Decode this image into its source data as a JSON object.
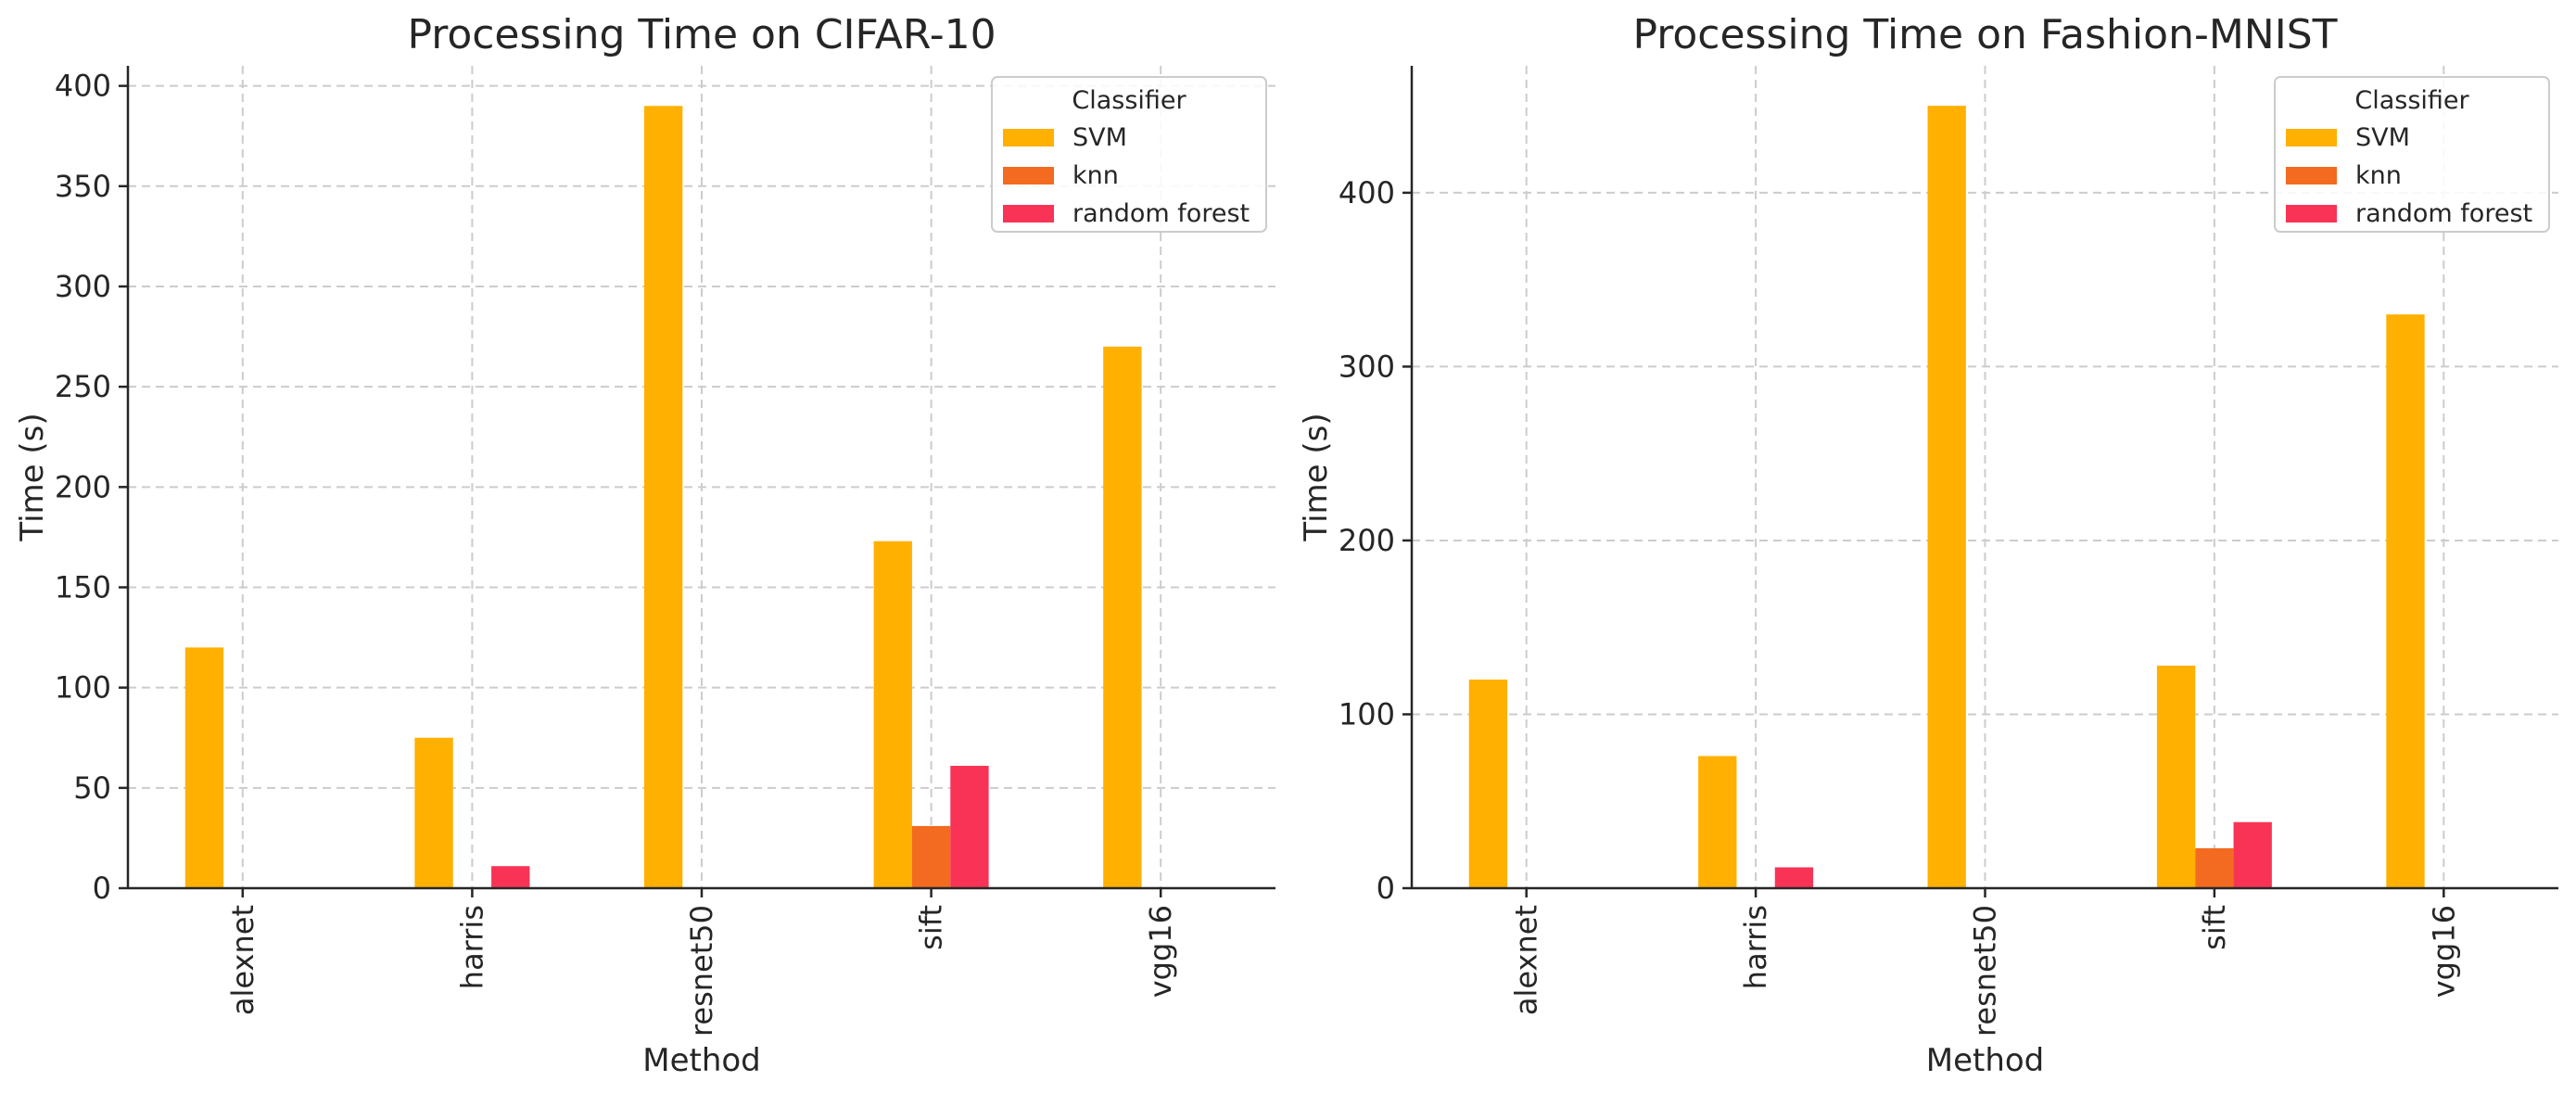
{
  "chart_data": [
    {
      "type": "bar",
      "title": "Processing Time on CIFAR-10",
      "xlabel": "Method",
      "ylabel": "Time (s)",
      "categories": [
        "alexnet",
        "harris",
        "resnet50",
        "sift",
        "vgg16"
      ],
      "ylim": [
        0,
        410
      ],
      "yticks": [
        0,
        50,
        100,
        150,
        200,
        250,
        300,
        350,
        400
      ],
      "grid": true,
      "legend": {
        "title": "Classifier",
        "placement": "top-right"
      },
      "series": [
        {
          "name": "SVM",
          "color": "#FFB000",
          "values": [
            120,
            75,
            390,
            173,
            270
          ]
        },
        {
          "name": "knn",
          "color": "#F26B21",
          "values": [
            0,
            0,
            0,
            31,
            0
          ]
        },
        {
          "name": "random forest",
          "color": "#F83356",
          "values": [
            0,
            11,
            0,
            61,
            0
          ]
        }
      ]
    },
    {
      "type": "bar",
      "title": "Processing Time on Fashion-MNIST",
      "xlabel": "Method",
      "ylabel": "Time (s)",
      "categories": [
        "alexnet",
        "harris",
        "resnet50",
        "sift",
        "vgg16"
      ],
      "ylim": [
        0,
        473
      ],
      "yticks": [
        0,
        100,
        200,
        300,
        400
      ],
      "grid": true,
      "legend": {
        "title": "Classifier",
        "placement": "top-right"
      },
      "series": [
        {
          "name": "SVM",
          "color": "#FFB000",
          "values": [
            120,
            76,
            450,
            128,
            330
          ]
        },
        {
          "name": "knn",
          "color": "#F26B21",
          "values": [
            0,
            0,
            0,
            23,
            0
          ]
        },
        {
          "name": "random forest",
          "color": "#F83356",
          "values": [
            0,
            12,
            0,
            38,
            0
          ]
        }
      ]
    }
  ]
}
